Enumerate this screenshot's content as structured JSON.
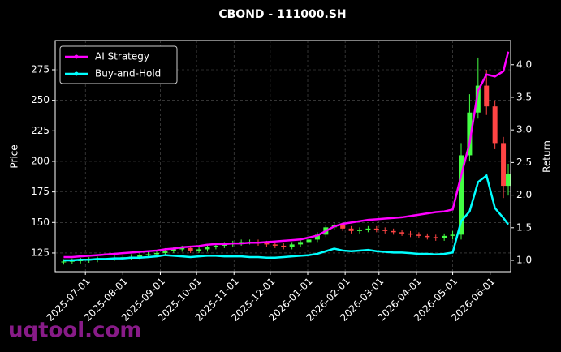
{
  "chart_data": {
    "type": "candlestick",
    "title": "CBOND - 111000.SH",
    "ylabel": "Price",
    "y2label": "Return",
    "watermark": "uqtool.com",
    "up_color": "#44ff44",
    "down_color": "#ff4444",
    "grid": true,
    "legend": "upper left",
    "x": [
      "2025-06-13",
      "2025-06-20",
      "2025-06-27",
      "2025-07-04",
      "2025-07-11",
      "2025-07-18",
      "2025-07-25",
      "2025-08-01",
      "2025-08-08",
      "2025-08-15",
      "2025-08-22",
      "2025-08-29",
      "2025-09-05",
      "2025-09-12",
      "2025-09-19",
      "2025-09-26",
      "2025-10-03",
      "2025-10-10",
      "2025-10-17",
      "2025-10-24",
      "2025-10-31",
      "2025-11-07",
      "2025-11-14",
      "2025-11-21",
      "2025-11-28",
      "2025-12-05",
      "2025-12-12",
      "2025-12-19",
      "2025-12-26",
      "2026-01-02",
      "2026-01-09",
      "2026-01-16",
      "2026-01-23",
      "2026-01-30",
      "2026-02-06",
      "2026-02-13",
      "2026-02-20",
      "2026-02-27",
      "2026-03-06",
      "2026-03-13",
      "2026-03-20",
      "2026-03-27",
      "2026-04-03",
      "2026-04-10",
      "2026-04-17",
      "2026-04-24",
      "2026-05-01",
      "2026-05-08",
      "2026-05-15",
      "2026-05-22",
      "2026-05-29",
      "2026-06-05",
      "2026-06-12",
      "2026-06-16"
    ],
    "open": [
      117.5,
      118,
      118.5,
      119,
      119.5,
      120,
      120.5,
      121,
      121.5,
      122,
      123,
      124,
      125,
      127,
      128,
      129,
      127,
      128,
      130,
      131,
      132,
      133,
      134,
      134,
      133,
      132,
      131,
      130,
      132,
      134,
      136,
      140,
      146,
      148,
      145,
      143,
      144,
      145,
      144,
      143,
      142,
      141,
      140,
      139,
      138,
      137,
      139,
      140,
      205,
      240,
      262,
      245,
      215,
      180
    ],
    "high": [
      120,
      120.5,
      121,
      121.5,
      122,
      122.5,
      123,
      123.5,
      124,
      125,
      126,
      127,
      129,
      130,
      131,
      131,
      130,
      132,
      133,
      134,
      135,
      136,
      136,
      136,
      135,
      134,
      133,
      134,
      136,
      138,
      142,
      148,
      150,
      150,
      147,
      146,
      147,
      147,
      146,
      145,
      144,
      143,
      142,
      141,
      140,
      141,
      143,
      215,
      255,
      285,
      275,
      250,
      220,
      198
    ],
    "low": [
      115.5,
      116,
      116.5,
      117,
      117.5,
      118,
      118.5,
      119,
      119.5,
      120,
      121,
      122,
      123,
      125,
      126,
      125,
      125,
      126,
      128,
      129,
      130,
      131,
      132,
      131,
      130,
      129,
      128,
      128,
      130,
      132,
      134,
      138,
      144,
      143,
      141,
      141,
      142,
      142,
      141,
      140,
      139,
      138,
      137,
      136,
      135,
      135,
      136,
      136,
      200,
      235,
      238,
      210,
      170,
      172
    ],
    "close": [
      118,
      118.5,
      119,
      119.5,
      120,
      120.5,
      121,
      121.5,
      122,
      123,
      124,
      125,
      127,
      128,
      129,
      127,
      128,
      130,
      131,
      132,
      133,
      134,
      134,
      133,
      132,
      131,
      130,
      132,
      134,
      136,
      140,
      146,
      148,
      145,
      143,
      144,
      145,
      144,
      143,
      142,
      141,
      140,
      139,
      138,
      137,
      139,
      140,
      205,
      240,
      262,
      245,
      215,
      180,
      190
    ],
    "series": [
      {
        "name": "AI Strategy",
        "color": "#ff00ff",
        "axis": "y2",
        "values": [
          1.05,
          1.05,
          1.06,
          1.07,
          1.08,
          1.09,
          1.1,
          1.11,
          1.12,
          1.13,
          1.14,
          1.15,
          1.17,
          1.18,
          1.2,
          1.21,
          1.22,
          1.24,
          1.25,
          1.25,
          1.26,
          1.26,
          1.27,
          1.27,
          1.28,
          1.29,
          1.3,
          1.31,
          1.32,
          1.35,
          1.38,
          1.45,
          1.52,
          1.56,
          1.58,
          1.6,
          1.62,
          1.63,
          1.64,
          1.65,
          1.66,
          1.68,
          1.7,
          1.72,
          1.74,
          1.75,
          1.78,
          2.3,
          2.8,
          3.6,
          3.85,
          3.82,
          3.9,
          4.2
        ]
      },
      {
        "name": "Buy-and-Hold",
        "color": "#00ffff",
        "axis": "y2",
        "values": [
          1.0,
          1.0,
          1.01,
          1.01,
          1.02,
          1.02,
          1.03,
          1.03,
          1.04,
          1.04,
          1.05,
          1.06,
          1.08,
          1.07,
          1.06,
          1.05,
          1.06,
          1.07,
          1.07,
          1.06,
          1.06,
          1.06,
          1.05,
          1.05,
          1.04,
          1.04,
          1.05,
          1.06,
          1.07,
          1.08,
          1.1,
          1.14,
          1.18,
          1.15,
          1.14,
          1.15,
          1.16,
          1.14,
          1.13,
          1.12,
          1.12,
          1.11,
          1.1,
          1.1,
          1.09,
          1.1,
          1.12,
          1.6,
          1.75,
          2.2,
          2.3,
          1.8,
          1.65,
          1.55
        ]
      }
    ],
    "xlim": [
      "2025-06-06",
      "2026-06-18"
    ],
    "xticks": [
      "2025-07-01",
      "2025-08-01",
      "2025-09-01",
      "2025-10-01",
      "2025-11-01",
      "2025-12-01",
      "2026-01-01",
      "2026-02-01",
      "2026-03-01",
      "2026-04-01",
      "2026-05-01",
      "2026-06-01"
    ],
    "ylim": [
      109.7,
      298.9
    ],
    "yticks": [
      125,
      150,
      175,
      200,
      225,
      250,
      275
    ],
    "y2lim": [
      0.826,
      4.37
    ],
    "y2ticks": [
      {
        "value": 1,
        "label": "1.0"
      },
      1.5,
      {
        "value": 2,
        "label": "2.0"
      },
      2.5,
      {
        "value": 3,
        "label": "3.0"
      },
      3.5,
      {
        "value": 4,
        "label": "4.0"
      }
    ]
  }
}
